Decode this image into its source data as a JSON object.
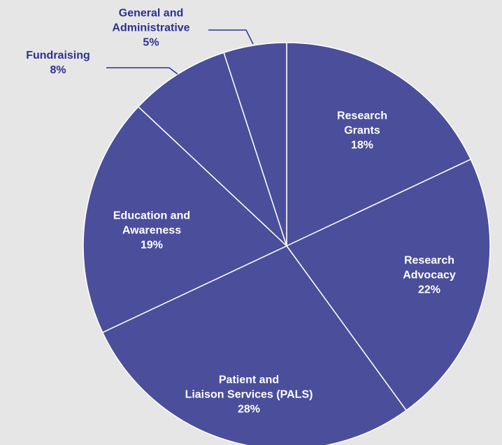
{
  "chart_data": {
    "type": "pie",
    "categories": [
      "Research\nGrants",
      "Research\nAdvocacy",
      "Patient and\nLiaison Services (PALS)",
      "Education and\nAwareness",
      "Fundraising",
      "General and\nAdministrative"
    ],
    "values": [
      18,
      22,
      28,
      19,
      8,
      5
    ],
    "value_labels": [
      "18%",
      "22%",
      "28%",
      "19%",
      "8%",
      "5%"
    ],
    "color": "#4a4e9b"
  }
}
